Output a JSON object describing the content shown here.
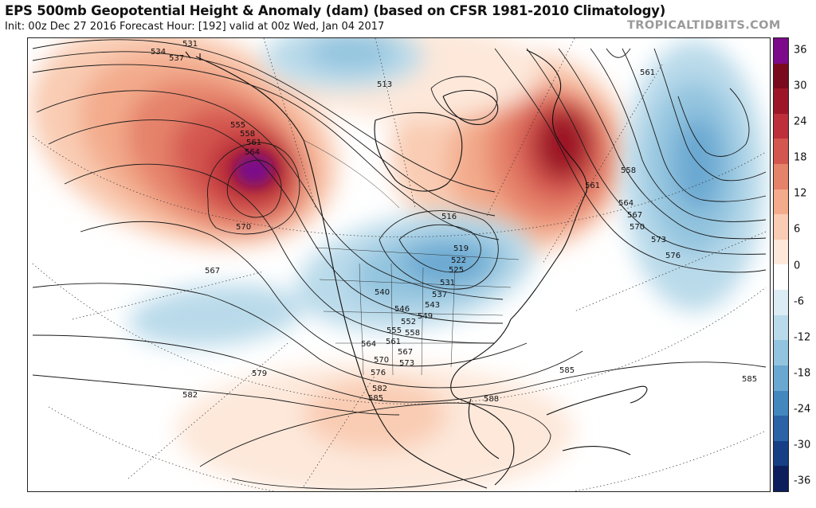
{
  "header": {
    "title": "EPS 500mb Geopotential Height & Anomaly (dam) (based on CFSR 1981-2010 Climatology)",
    "subtitle": "Init: 00z Dec 27 2016   Forecast Hour: [192]   valid at 00z Wed, Jan 04 2017",
    "watermark": "TROPICALTIDBITS.COM"
  },
  "colors": {
    "pos": [
      "#fde8da",
      "#f9ccb3",
      "#f3ab8c",
      "#e5826a",
      "#d4574f",
      "#bd2f3a",
      "#9c1628",
      "#7a0a1e"
    ],
    "neg": [
      "#dbecf4",
      "#b9daea",
      "#93c4df",
      "#6aa8d1",
      "#4487bf",
      "#2b63a6",
      "#173f86",
      "#0c1f5c"
    ],
    "extreme_pos": "#7c0a8a",
    "zero": "#ffffff"
  },
  "colorbar": {
    "labels": [
      "36",
      "30",
      "24",
      "18",
      "12",
      "6",
      "0",
      "-6",
      "-12",
      "-18",
      "-24",
      "-30",
      "-36"
    ]
  },
  "contour_labels": [
    {
      "text": "531"
    },
    {
      "text": "534"
    },
    {
      "text": "537"
    },
    {
      "text": "513"
    },
    {
      "text": "555"
    },
    {
      "text": "558"
    },
    {
      "text": "561"
    },
    {
      "text": "564"
    },
    {
      "text": "570"
    },
    {
      "text": "567"
    },
    {
      "text": "516"
    },
    {
      "text": "519"
    },
    {
      "text": "522"
    },
    {
      "text": "525"
    },
    {
      "text": "531"
    },
    {
      "text": "537"
    },
    {
      "text": "540"
    },
    {
      "text": "543"
    },
    {
      "text": "546"
    },
    {
      "text": "549"
    },
    {
      "text": "552"
    },
    {
      "text": "555"
    },
    {
      "text": "558"
    },
    {
      "text": "561"
    },
    {
      "text": "564"
    },
    {
      "text": "567"
    },
    {
      "text": "570"
    },
    {
      "text": "573"
    },
    {
      "text": "576"
    },
    {
      "text": "579"
    },
    {
      "text": "582"
    },
    {
      "text": "582"
    },
    {
      "text": "585"
    },
    {
      "text": "588"
    },
    {
      "text": "585"
    },
    {
      "text": "585"
    },
    {
      "text": "561"
    },
    {
      "text": "558"
    },
    {
      "text": "561"
    },
    {
      "text": "564"
    },
    {
      "text": "567"
    },
    {
      "text": "570"
    },
    {
      "text": "573"
    },
    {
      "text": "576"
    }
  ]
}
